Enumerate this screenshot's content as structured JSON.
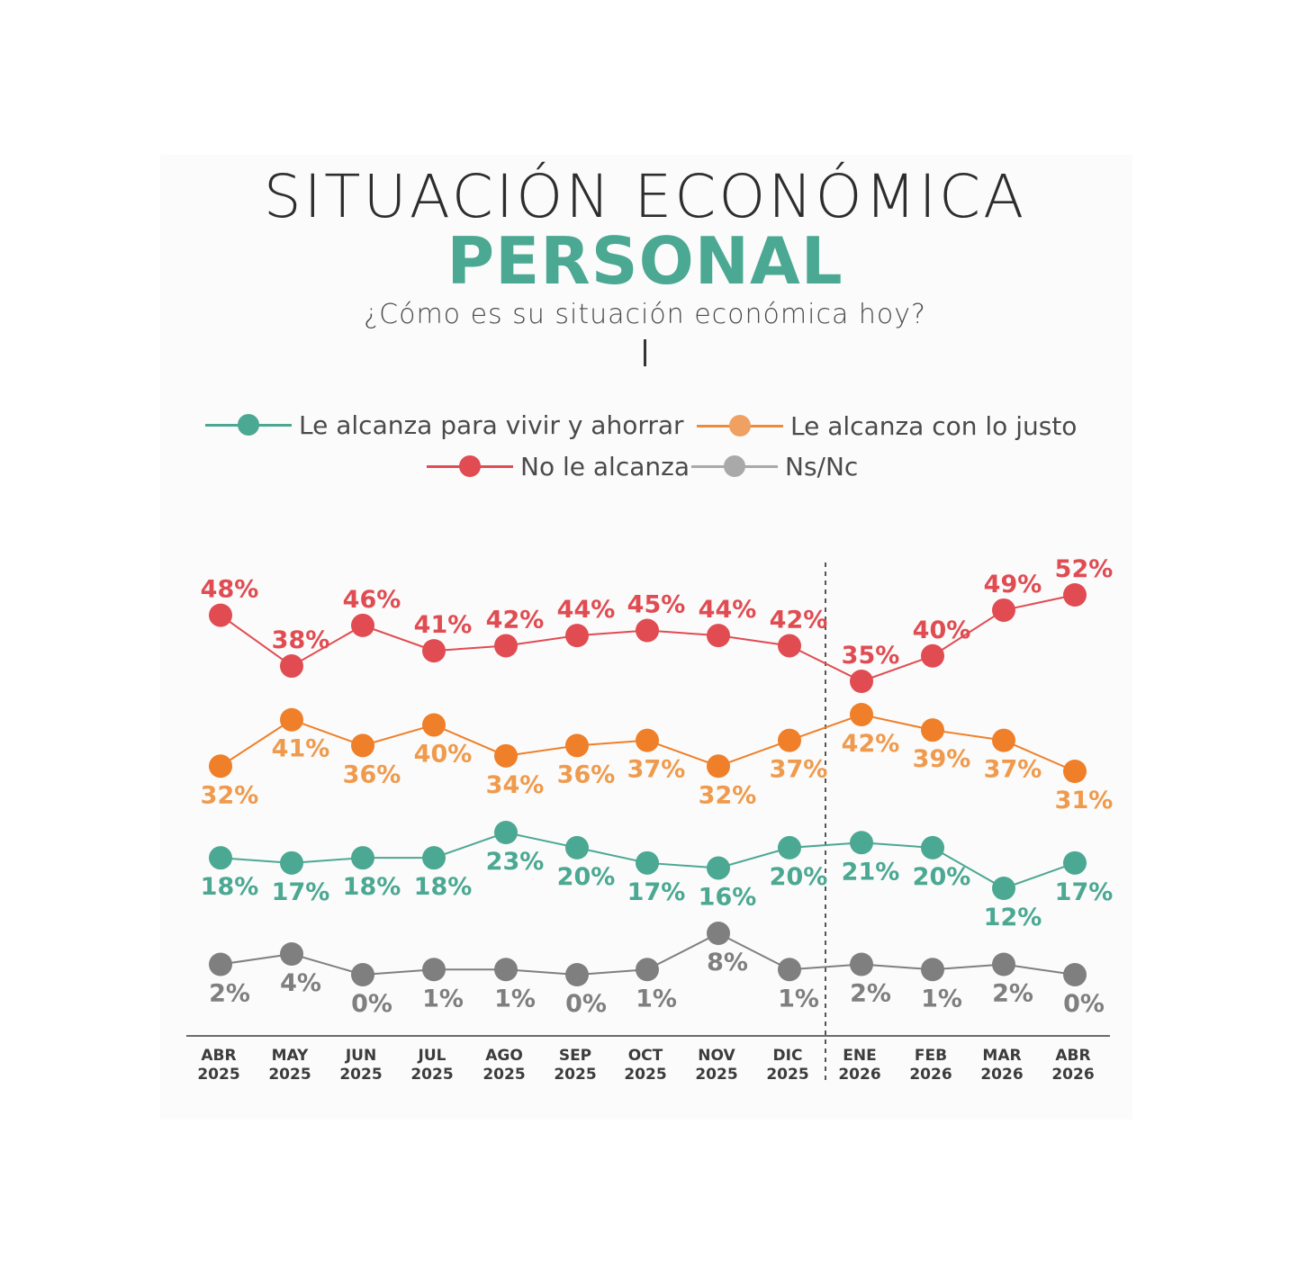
{
  "header": {
    "title_line1": "SITUACIÓN ECONÓMICA",
    "title_line2": "PERSONAL",
    "question": "¿Cómo es su situación económica hoy?"
  },
  "legend": {
    "items": [
      {
        "label": "Le alcanza para vivir y ahorrar",
        "color": "#4ba892"
      },
      {
        "label": "Le alcanza con lo justo",
        "color": "#ef8a3a"
      },
      {
        "label": "No le alcanza",
        "color": "#e04c52"
      },
      {
        "label": "Ns/Nc",
        "color": "#a9a9a9"
      }
    ]
  },
  "chart_data": {
    "type": "line",
    "categories": [
      [
        "ABR",
        "2025"
      ],
      [
        "MAY",
        "2025"
      ],
      [
        "JUN",
        "2025"
      ],
      [
        "JUL",
        "2025"
      ],
      [
        "AGO",
        "2025"
      ],
      [
        "SEP",
        "2025"
      ],
      [
        "OCT",
        "2025"
      ],
      [
        "NOV",
        "2025"
      ],
      [
        "DIC",
        "2025"
      ],
      [
        "ENE",
        "2026"
      ],
      [
        "FEB",
        "2026"
      ],
      [
        "MAR",
        "2026"
      ],
      [
        "ABR",
        "2026"
      ]
    ],
    "series": [
      {
        "name": "No le alcanza",
        "color": "#e04c52",
        "label_color": "#e04c52",
        "values": [
          48,
          38,
          46,
          41,
          42,
          44,
          45,
          44,
          42,
          35,
          40,
          49,
          52
        ],
        "label_position": "above"
      },
      {
        "name": "Le alcanza con lo justo",
        "color": "#ef7f28",
        "label_color": "#ef9a4c",
        "values": [
          32,
          41,
          36,
          40,
          34,
          36,
          37,
          32,
          37,
          42,
          39,
          37,
          31
        ],
        "label_position": "below"
      },
      {
        "name": "Le alcanza para vivir y ahorrar",
        "color": "#4ba892",
        "label_color": "#4ba892",
        "values": [
          18,
          17,
          18,
          18,
          23,
          20,
          17,
          16,
          20,
          21,
          20,
          12,
          17
        ],
        "label_position": "below"
      },
      {
        "name": "Ns/Nc",
        "color": "#7f7f7f",
        "label_color": "#7f7f7f",
        "values": [
          2,
          4,
          0,
          1,
          1,
          0,
          1,
          8,
          1,
          2,
          1,
          2,
          0
        ],
        "label_position": "below"
      }
    ],
    "value_suffix": "%",
    "divider_after_category": "DIC 2025",
    "grid": false
  }
}
